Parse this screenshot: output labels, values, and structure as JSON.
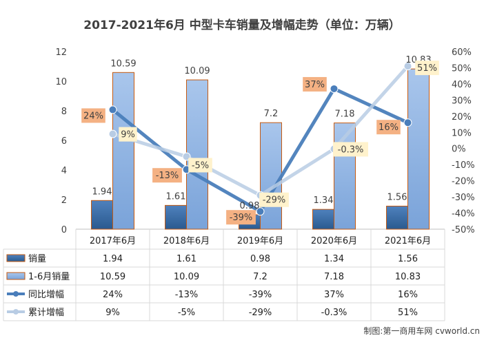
{
  "chart_data": {
    "type": "bar",
    "title": "2017-2021年6月 中型卡车销量及增幅走势（单位：万辆）",
    "categories": [
      "2017年6月",
      "2018年6月",
      "2019年6月",
      "2020年6月",
      "2021年6月"
    ],
    "series": [
      {
        "name": "销量",
        "type": "bar",
        "axis": "left",
        "color": "#3d6fa5",
        "values": [
          1.94,
          1.61,
          0.98,
          1.34,
          1.56
        ]
      },
      {
        "name": "1-6月销量",
        "type": "bar",
        "axis": "left",
        "color": "#8fb4e3",
        "values": [
          10.59,
          10.09,
          7.2,
          7.18,
          10.83
        ]
      },
      {
        "name": "同比增幅",
        "type": "line",
        "axis": "right",
        "color": "#4a7ebb",
        "label_color": "#f4b183",
        "values": [
          24,
          -13,
          -39,
          37,
          16
        ]
      },
      {
        "name": "累计增幅",
        "type": "line",
        "axis": "right",
        "color": "#b8cce4",
        "label_color": "#fff2cc",
        "values": [
          9,
          -5,
          -29,
          -0.3,
          51
        ]
      }
    ],
    "left_axis": {
      "min": 0,
      "max": 12,
      "step": 2,
      "ticks": [
        "0",
        "2",
        "4",
        "6",
        "8",
        "10",
        "12"
      ]
    },
    "right_axis": {
      "min": -50,
      "max": 60,
      "step": 10,
      "ticks": [
        "-50%",
        "-40%",
        "-30%",
        "-20%",
        "-10%",
        "0%",
        "10%",
        "20%",
        "30%",
        "40%",
        "50%",
        "60%"
      ]
    },
    "bar_labels": {
      "销量": [
        "1.94",
        "1.61",
        "0.98",
        "1.34",
        "1.56"
      ],
      "1-6月销量": [
        "10.59",
        "10.09",
        "7.2",
        "7.18",
        "10.83"
      ]
    },
    "line_labels": {
      "同比增幅": [
        "24%",
        "-13%",
        "-39%",
        "37%",
        "16%"
      ],
      "累计增幅": [
        "9%",
        "-5%",
        "-29%",
        "-0.3%",
        "51%"
      ]
    },
    "table_rows": [
      {
        "name": "销量",
        "cells": [
          "1.94",
          "1.61",
          "0.98",
          "1.34",
          "1.56"
        ]
      },
      {
        "name": "1-6月销量",
        "cells": [
          "10.59",
          "10.09",
          "7.2",
          "7.18",
          "10.83"
        ]
      },
      {
        "name": "同比增幅",
        "cells": [
          "24%",
          "-13%",
          "-39%",
          "37%",
          "16%"
        ]
      },
      {
        "name": "累计增幅",
        "cells": [
          "9%",
          "-5%",
          "-29%",
          "-0.3%",
          "51%"
        ]
      }
    ],
    "grid": false
  },
  "credit": "制图:第一商用车网 cvworld.cn"
}
